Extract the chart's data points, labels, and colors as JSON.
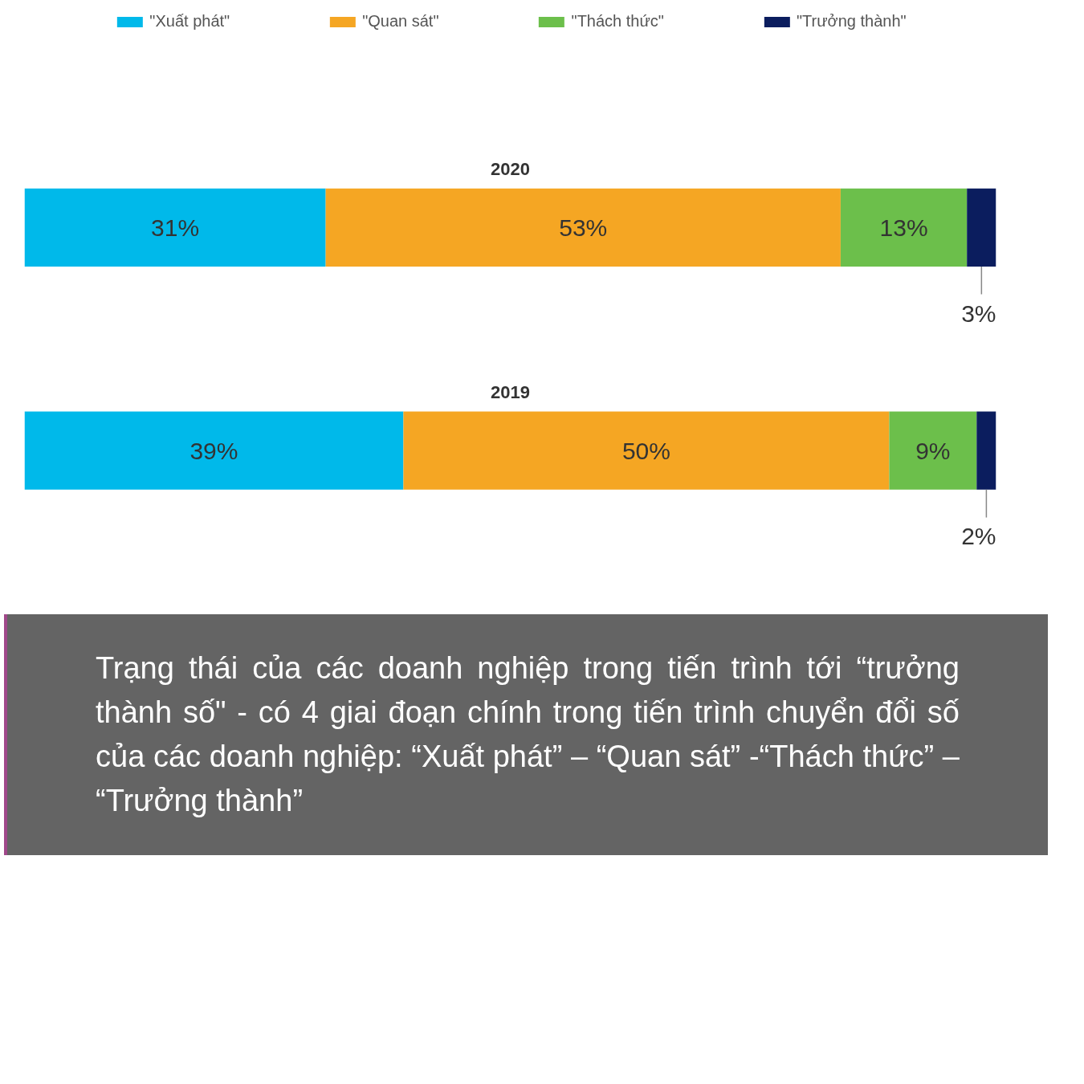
{
  "chart_data": {
    "type": "bar",
    "orientation": "horizontal",
    "stacked": true,
    "categories": [
      "2020",
      "2019"
    ],
    "series": [
      {
        "name": "\"Xuất phát\"",
        "color": "#00b9ea",
        "values": [
          31,
          39
        ],
        "value_labels": [
          "31%",
          "39%"
        ]
      },
      {
        "name": "\"Quan sát\"",
        "color": "#f5a623",
        "values": [
          53,
          50
        ],
        "value_labels": [
          "53%",
          "50%"
        ]
      },
      {
        "name": "\"Thách thức\"",
        "color": "#6cbf4b",
        "values": [
          13,
          9
        ],
        "value_labels": [
          "13%",
          "9%"
        ]
      },
      {
        "name": "\"Trưởng thành\"",
        "color": "#0b1d5e",
        "values": [
          3,
          2
        ],
        "value_labels": [
          "3%",
          "2%"
        ]
      }
    ],
    "xlim": [
      0,
      100
    ],
    "tick_labels": false,
    "grid": false,
    "legend": "top",
    "annotations": [
      "Trạng thái của các doanh nghiệp trong tiến trình tới “trưởng thành số\" - có 4 giai đoạn chính trong tiến trình chuyển đổi số của các doanh nghiệp: “Xuất phát” – “Quan sát” -“Thách thức” – “Trưởng thành”"
    ]
  }
}
